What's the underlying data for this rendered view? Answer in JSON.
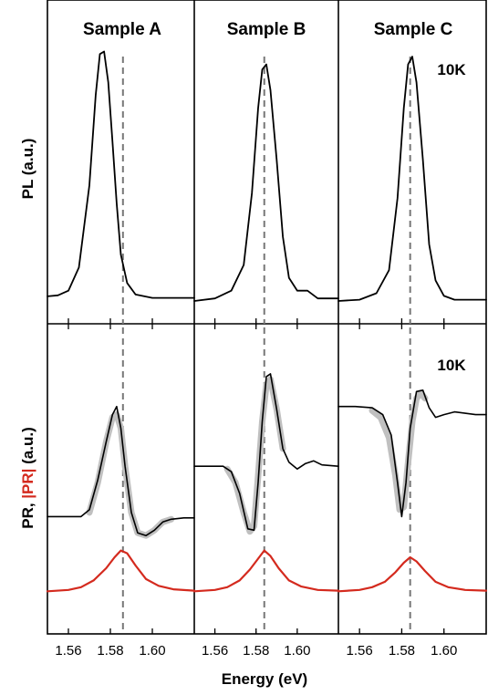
{
  "figure": {
    "columns": [
      "Sample A",
      "Sample B",
      "Sample C"
    ],
    "pl_ylabel": "PL (a.u.)",
    "pr_ylabel_prefix": "PR, ",
    "pr_ylabel_abs": "|PR|",
    "pr_ylabel_suffix": " (a.u.)",
    "xlabel": "Energy (eV)",
    "temperature_label": "10K",
    "colors": {
      "pr_measured": "#000000",
      "pr_fit": "#c0c0c0",
      "pr_modulus": "#d42a1e",
      "pl": "#000000",
      "marker": "#777777"
    }
  },
  "chart_data": [
    {
      "type": "line",
      "panel": "PL",
      "sample": "Sample A",
      "xlim": [
        1.55,
        1.62
      ],
      "ylim": [
        0,
        1
      ],
      "xticks": [
        1.56,
        1.58,
        1.6
      ],
      "peak_energy_marker": 1.586,
      "series": [
        {
          "values": [
            [
              1.55,
              0.018
            ],
            [
              1.555,
              0.022
            ],
            [
              1.56,
              0.04
            ],
            [
              1.565,
              0.13
            ],
            [
              1.57,
              0.45
            ],
            [
              1.573,
              0.8
            ],
            [
              1.575,
              0.96
            ],
            [
              1.577,
              0.97
            ],
            [
              1.579,
              0.85
            ],
            [
              1.581,
              0.62
            ],
            [
              1.583,
              0.38
            ],
            [
              1.585,
              0.18
            ],
            [
              1.588,
              0.07
            ],
            [
              1.592,
              0.025
            ],
            [
              1.6,
              0.012
            ],
            [
              1.62,
              0.012
            ]
          ]
        }
      ]
    },
    {
      "type": "line",
      "panel": "PL",
      "sample": "Sample B",
      "xlim": [
        1.55,
        1.62
      ],
      "ylim": [
        0,
        1
      ],
      "xticks": [
        1.56,
        1.58,
        1.6
      ],
      "peak_energy_marker": 1.584,
      "series": [
        {
          "values": [
            [
              1.55,
              0.0
            ],
            [
              1.56,
              0.01
            ],
            [
              1.568,
              0.04
            ],
            [
              1.574,
              0.14
            ],
            [
              1.578,
              0.42
            ],
            [
              1.581,
              0.75
            ],
            [
              1.583,
              0.9
            ],
            [
              1.585,
              0.92
            ],
            [
              1.587,
              0.82
            ],
            [
              1.59,
              0.55
            ],
            [
              1.593,
              0.25
            ],
            [
              1.596,
              0.09
            ],
            [
              1.6,
              0.04
            ],
            [
              1.605,
              0.04
            ],
            [
              1.61,
              0.01
            ],
            [
              1.62,
              0.01
            ]
          ]
        }
      ]
    },
    {
      "type": "line",
      "panel": "PL",
      "sample": "Sample C",
      "xlim": [
        1.55,
        1.62
      ],
      "ylim": [
        0,
        1
      ],
      "xticks": [
        1.56,
        1.58,
        1.6
      ],
      "peak_energy_marker": 1.584,
      "series": [
        {
          "values": [
            [
              1.55,
              0.0
            ],
            [
              1.56,
              0.005
            ],
            [
              1.568,
              0.03
            ],
            [
              1.574,
              0.12
            ],
            [
              1.578,
              0.4
            ],
            [
              1.581,
              0.75
            ],
            [
              1.583,
              0.92
            ],
            [
              1.585,
              0.95
            ],
            [
              1.587,
              0.85
            ],
            [
              1.59,
              0.55
            ],
            [
              1.593,
              0.22
            ],
            [
              1.596,
              0.08
            ],
            [
              1.6,
              0.02
            ],
            [
              1.605,
              0.005
            ],
            [
              1.62,
              0.005
            ]
          ]
        }
      ]
    },
    {
      "type": "line",
      "panel": "PR",
      "sample": "Sample A",
      "xlim": [
        1.55,
        1.62
      ],
      "ylim": [
        -0.3,
        1.7
      ],
      "xticks": [
        1.56,
        1.58,
        1.6
      ],
      "peak_energy_marker": 1.586,
      "series": [
        {
          "role": "measured",
          "values": [
            [
              1.55,
              0.55
            ],
            [
              1.56,
              0.55
            ],
            [
              1.566,
              0.55
            ],
            [
              1.57,
              0.6
            ],
            [
              1.574,
              0.82
            ],
            [
              1.578,
              1.1
            ],
            [
              1.581,
              1.3
            ],
            [
              1.583,
              1.36
            ],
            [
              1.585,
              1.2
            ],
            [
              1.587,
              0.92
            ],
            [
              1.59,
              0.58
            ],
            [
              1.593,
              0.43
            ],
            [
              1.597,
              0.41
            ],
            [
              1.601,
              0.45
            ],
            [
              1.605,
              0.51
            ],
            [
              1.609,
              0.53
            ],
            [
              1.615,
              0.54
            ],
            [
              1.62,
              0.54
            ]
          ]
        },
        {
          "role": "fit",
          "values": [
            [
              1.57,
              0.58
            ],
            [
              1.574,
              0.8
            ],
            [
              1.578,
              1.1
            ],
            [
              1.581,
              1.28
            ],
            [
              1.583,
              1.3
            ],
            [
              1.585,
              1.2
            ],
            [
              1.587,
              0.92
            ],
            [
              1.59,
              0.58
            ],
            [
              1.593,
              0.43
            ],
            [
              1.597,
              0.41
            ],
            [
              1.601,
              0.45
            ],
            [
              1.605,
              0.51
            ],
            [
              1.609,
              0.53
            ]
          ]
        },
        {
          "role": "modulus",
          "values": [
            [
              1.55,
              0.0
            ],
            [
              1.56,
              0.01
            ],
            [
              1.566,
              0.03
            ],
            [
              1.572,
              0.08
            ],
            [
              1.578,
              0.17
            ],
            [
              1.582,
              0.25
            ],
            [
              1.585,
              0.3
            ],
            [
              1.588,
              0.28
            ],
            [
              1.592,
              0.19
            ],
            [
              1.597,
              0.09
            ],
            [
              1.603,
              0.04
            ],
            [
              1.61,
              0.015
            ],
            [
              1.62,
              0.005
            ]
          ]
        }
      ]
    },
    {
      "type": "line",
      "panel": "PR",
      "sample": "Sample B",
      "xlim": [
        1.55,
        1.62
      ],
      "ylim": [
        -0.3,
        1.7
      ],
      "xticks": [
        1.56,
        1.58,
        1.6
      ],
      "peak_energy_marker": 1.584,
      "series": [
        {
          "role": "measured",
          "values": [
            [
              1.55,
              0.92
            ],
            [
              1.558,
              0.92
            ],
            [
              1.564,
              0.92
            ],
            [
              1.568,
              0.88
            ],
            [
              1.572,
              0.72
            ],
            [
              1.576,
              0.46
            ],
            [
              1.579,
              0.45
            ],
            [
              1.581,
              0.8
            ],
            [
              1.583,
              1.25
            ],
            [
              1.585,
              1.58
            ],
            [
              1.587,
              1.6
            ],
            [
              1.59,
              1.34
            ],
            [
              1.593,
              1.05
            ],
            [
              1.596,
              0.95
            ],
            [
              1.6,
              0.9
            ],
            [
              1.604,
              0.94
            ],
            [
              1.608,
              0.96
            ],
            [
              1.612,
              0.93
            ],
            [
              1.62,
              0.92
            ]
          ]
        },
        {
          "role": "fit",
          "values": [
            [
              1.566,
              0.9
            ],
            [
              1.57,
              0.8
            ],
            [
              1.574,
              0.58
            ],
            [
              1.577,
              0.44
            ],
            [
              1.579,
              0.48
            ],
            [
              1.581,
              0.85
            ],
            [
              1.583,
              1.25
            ],
            [
              1.585,
              1.52
            ],
            [
              1.587,
              1.56
            ],
            [
              1.59,
              1.34
            ],
            [
              1.593,
              1.05
            ]
          ]
        },
        {
          "role": "modulus",
          "values": [
            [
              1.55,
              0.0
            ],
            [
              1.56,
              0.01
            ],
            [
              1.566,
              0.03
            ],
            [
              1.572,
              0.08
            ],
            [
              1.577,
              0.16
            ],
            [
              1.581,
              0.24
            ],
            [
              1.584,
              0.3
            ],
            [
              1.587,
              0.26
            ],
            [
              1.591,
              0.17
            ],
            [
              1.596,
              0.08
            ],
            [
              1.602,
              0.035
            ],
            [
              1.61,
              0.01
            ],
            [
              1.62,
              0.005
            ]
          ]
        }
      ]
    },
    {
      "type": "line",
      "panel": "PR",
      "sample": "Sample C",
      "xlim": [
        1.55,
        1.62
      ],
      "ylim": [
        -0.3,
        1.7
      ],
      "xticks": [
        1.56,
        1.58,
        1.6
      ],
      "peak_energy_marker": 1.584,
      "series": [
        {
          "role": "measured",
          "values": [
            [
              1.55,
              1.36
            ],
            [
              1.558,
              1.36
            ],
            [
              1.566,
              1.35
            ],
            [
              1.571,
              1.3
            ],
            [
              1.575,
              1.15
            ],
            [
              1.578,
              0.8
            ],
            [
              1.58,
              0.55
            ],
            [
              1.582,
              0.8
            ],
            [
              1.584,
              1.2
            ],
            [
              1.587,
              1.47
            ],
            [
              1.59,
              1.48
            ],
            [
              1.593,
              1.35
            ],
            [
              1.596,
              1.28
            ],
            [
              1.6,
              1.3
            ],
            [
              1.605,
              1.32
            ],
            [
              1.61,
              1.31
            ],
            [
              1.615,
              1.3
            ],
            [
              1.62,
              1.3
            ]
          ]
        },
        {
          "role": "fit",
          "values": [
            [
              1.566,
              1.33
            ],
            [
              1.57,
              1.28
            ],
            [
              1.574,
              1.13
            ],
            [
              1.577,
              0.85
            ],
            [
              1.579,
              0.6
            ],
            [
              1.581,
              0.62
            ],
            [
              1.583,
              0.95
            ],
            [
              1.585,
              1.25
            ],
            [
              1.587,
              1.42
            ],
            [
              1.589,
              1.46
            ],
            [
              1.591,
              1.42
            ]
          ]
        },
        {
          "role": "modulus",
          "values": [
            [
              1.55,
              0.0
            ],
            [
              1.56,
              0.01
            ],
            [
              1.566,
              0.03
            ],
            [
              1.572,
              0.07
            ],
            [
              1.577,
              0.14
            ],
            [
              1.581,
              0.21
            ],
            [
              1.584,
              0.25
            ],
            [
              1.587,
              0.22
            ],
            [
              1.591,
              0.15
            ],
            [
              1.596,
              0.07
            ],
            [
              1.602,
              0.03
            ],
            [
              1.61,
              0.01
            ],
            [
              1.62,
              0.005
            ]
          ]
        }
      ]
    }
  ]
}
